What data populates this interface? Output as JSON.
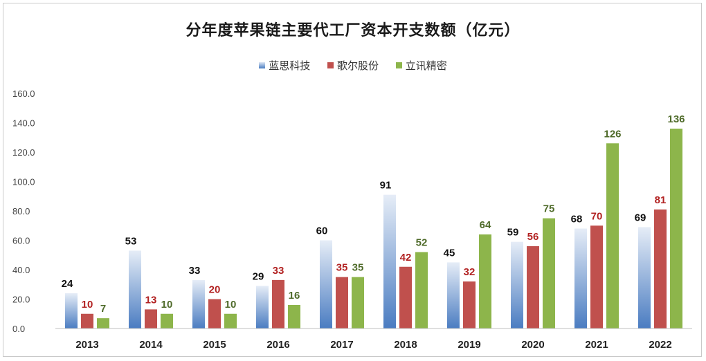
{
  "chart_data": {
    "type": "bar",
    "title": "分年度苹果链主要代工厂资本开支数额（亿元）",
    "categories": [
      "2013",
      "2014",
      "2015",
      "2016",
      "2017",
      "2018",
      "2019",
      "2020",
      "2021",
      "2022"
    ],
    "series": [
      {
        "name": "蓝思科技",
        "values": [
          24,
          53,
          33,
          29,
          60,
          91,
          45,
          59,
          68,
          69
        ],
        "color": "#4a7cc1",
        "label_color": "#111111"
      },
      {
        "name": "歌尔股份",
        "values": [
          10,
          13,
          20,
          33,
          35,
          42,
          32,
          56,
          70,
          81
        ],
        "color": "#c0504d",
        "label_color": "#b22222"
      },
      {
        "name": "立讯精密",
        "values": [
          7,
          10,
          10,
          16,
          35,
          52,
          64,
          75,
          126,
          136
        ],
        "color": "#8db54b",
        "label_color": "#4f6b2a"
      }
    ],
    "ylim": [
      0,
      160
    ],
    "yticks": [
      "0.0",
      "20.0",
      "40.0",
      "60.0",
      "80.0",
      "100.0",
      "120.0",
      "140.0",
      "160.0"
    ],
    "legend_position": "top-center",
    "grid": false
  }
}
